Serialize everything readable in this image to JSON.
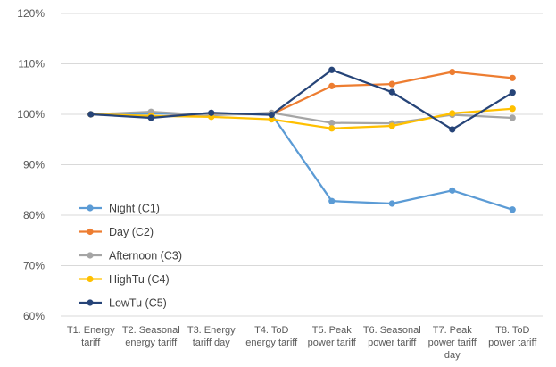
{
  "chart_data": {
    "type": "line",
    "title": "",
    "xlabel": "",
    "ylabel": "",
    "ylim": [
      60,
      120
    ],
    "ytick_step": 10,
    "ytick_suffix": "%",
    "grid": true,
    "legend_position": "bottom-left",
    "categories": [
      [
        "T1. Energy",
        "tariff"
      ],
      [
        "T2. Seasonal",
        "energy tariff"
      ],
      [
        "T3. Energy",
        "tariff day"
      ],
      [
        "T4. ToD",
        "energy tariff"
      ],
      [
        "T5. Peak",
        "power tariff"
      ],
      [
        "T6. Seasonal",
        "power tariff"
      ],
      [
        "T7. Peak",
        "power tariff",
        "day"
      ],
      [
        "T8. ToD",
        "power tariff"
      ]
    ],
    "series": [
      {
        "name": "Night (C1)",
        "color": "#5B9BD5",
        "values": [
          100,
          100.2,
          100,
          100,
          82.8,
          82.3,
          84.9,
          81.1
        ]
      },
      {
        "name": "Day (C2)",
        "color": "#ED7D31",
        "values": [
          100,
          99.5,
          100.1,
          100,
          105.6,
          106,
          108.4,
          107.2
        ]
      },
      {
        "name": "Afternoon (C3)",
        "color": "#A5A5A5",
        "values": [
          100,
          100.5,
          99.8,
          100.3,
          98.3,
          98.2,
          99.9,
          99.3
        ]
      },
      {
        "name": "HighTu (C4)",
        "color": "#FFC000",
        "values": [
          100,
          99.7,
          99.5,
          99,
          97.2,
          97.7,
          100.2,
          101.1
        ]
      },
      {
        "name": "LowTu (C5)",
        "color": "#264478",
        "values": [
          100,
          99.3,
          100.3,
          99.9,
          108.8,
          104.4,
          97,
          104.3
        ]
      }
    ]
  }
}
